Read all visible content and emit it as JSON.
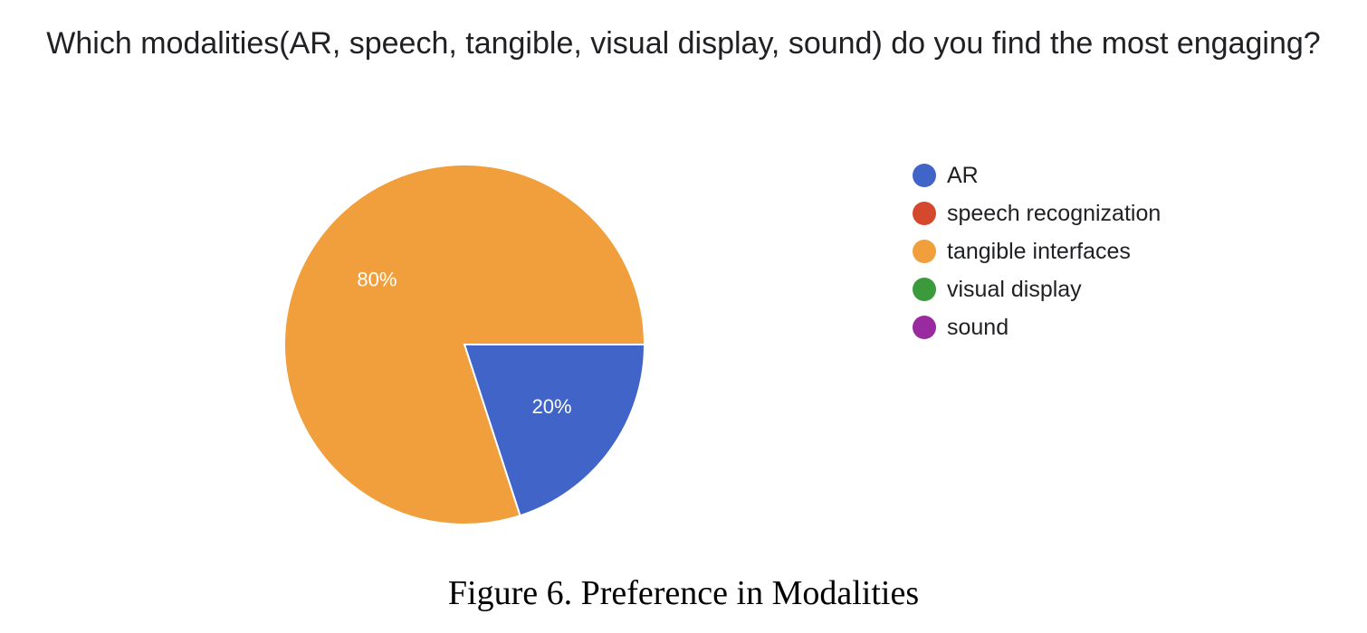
{
  "question": {
    "title": "Which modalities(AR, speech, tangible, visual display, sound) do you find the most engaging?"
  },
  "caption": "Figure 6. Preference in Modalities",
  "chart_data": {
    "type": "pie",
    "title": "Which modalities(AR, speech, tangible, visual display, sound) do you find the most engaging?",
    "slices": [
      {
        "label": "AR",
        "value": 20,
        "display": "20%",
        "color": "#4064c8"
      },
      {
        "label": "speech recognization",
        "value": 0,
        "display": "",
        "color": "#d4492d"
      },
      {
        "label": "tangible interfaces",
        "value": 80,
        "display": "80%",
        "color": "#f09f3c"
      },
      {
        "label": "visual display",
        "value": 0,
        "display": "",
        "color": "#3a9a3c"
      },
      {
        "label": "sound",
        "value": 0,
        "display": "",
        "color": "#9a2aa0"
      }
    ],
    "legend_position": "right"
  }
}
